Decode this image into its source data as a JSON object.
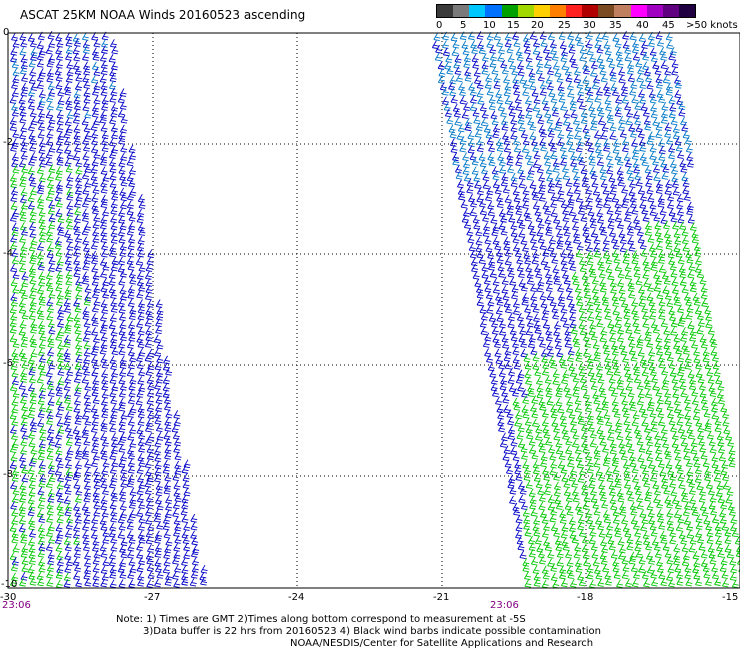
{
  "title": "ASCAT 25KM NOAA Winds 20160523 ascending",
  "legend": {
    "labels": [
      "0",
      "5",
      "10",
      "15",
      "20",
      "25",
      "30",
      "35",
      "40",
      "45",
      ">50 knots"
    ],
    "colors": [
      "#3a3a3a",
      "#7a7a7a",
      "#00c8ff",
      "#0070ff",
      "#00a000",
      "#a0d800",
      "#ffd000",
      "#ff8000",
      "#ff2020",
      "#b00000",
      "#7a4a20",
      "#c08060",
      "#ff00ff",
      "#a000c0",
      "#600080",
      "#200040"
    ]
  },
  "axes": {
    "y_labels": [
      "0",
      "-2",
      "-4",
      "-6",
      "-8",
      "-10"
    ],
    "x_labels": [
      "-30",
      "-27",
      "-24",
      "-21",
      "-18",
      "-15"
    ],
    "time_labels": [
      "23:06",
      "23:06"
    ]
  },
  "notes": [
    "Note: 1) Times are GMT 2)Times along bottom correspond to measurement at -5S",
    "3)Data buffer is 22 hrs from 20160523 4) Black wind barbs indicate possible contamination",
    "NOAA/NESDIS/Center for Satellite Applications and Research"
  ],
  "barb_colors": {
    "blue": "#0000c8",
    "lightblue": "#0078c8",
    "green": "#00c800"
  }
}
